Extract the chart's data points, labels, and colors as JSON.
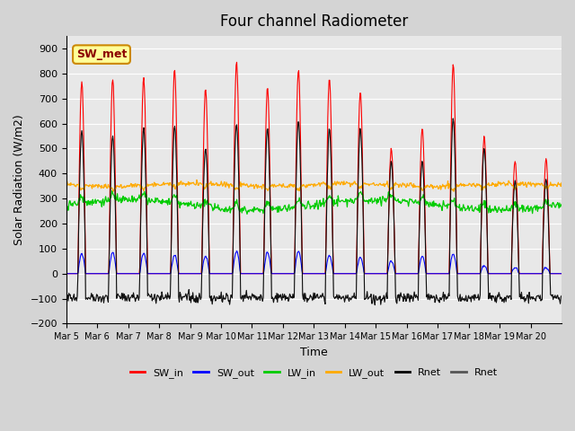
{
  "title": "Four channel Radiometer",
  "xlabel": "Time",
  "ylabel": "Solar Radiation (W/m2)",
  "ylim": [
    -200,
    950
  ],
  "background_color": "#e8e8e8",
  "xtick_labels": [
    "Mar 5",
    "Mar 6",
    "Mar 7",
    "Mar 8",
    "Mar 9",
    "Mar 10",
    "Mar 11",
    "Mar 12",
    "Mar 13",
    "Mar 14",
    "Mar 15",
    "Mar 16",
    "Mar 17",
    "Mar 18",
    "Mar 19",
    "Mar 20"
  ],
  "ytick_values": [
    -200,
    -100,
    0,
    100,
    200,
    300,
    400,
    500,
    600,
    700,
    800,
    900
  ],
  "legend_entries": [
    "SW_in",
    "SW_out",
    "LW_in",
    "LW_out",
    "Rnet",
    "Rnet"
  ],
  "legend_colors": [
    "#ff0000",
    "#0000ff",
    "#00cc00",
    "#ffaa00",
    "#000000",
    "#555555"
  ],
  "annotation_text": "SW_met",
  "annotation_bg": "#ffff99",
  "annotation_border": "#cc8800",
  "n_days": 16,
  "pts_per_day": 48,
  "sw_in_peaks": [
    770,
    775,
    780,
    815,
    740,
    850,
    740,
    815,
    780,
    730,
    500,
    580,
    835,
    550,
    450,
    460
  ],
  "sw_out_peaks": [
    80,
    85,
    80,
    75,
    70,
    90,
    85,
    90,
    75,
    65,
    50,
    70,
    80,
    30,
    25,
    25
  ],
  "lw_in_base": 275,
  "lw_out_base": 355,
  "rnet_day_peaks": [
    570,
    550,
    580,
    590,
    500,
    600,
    580,
    610,
    580,
    580,
    450,
    450,
    620,
    500,
    370,
    380
  ],
  "rnet_night": -95
}
